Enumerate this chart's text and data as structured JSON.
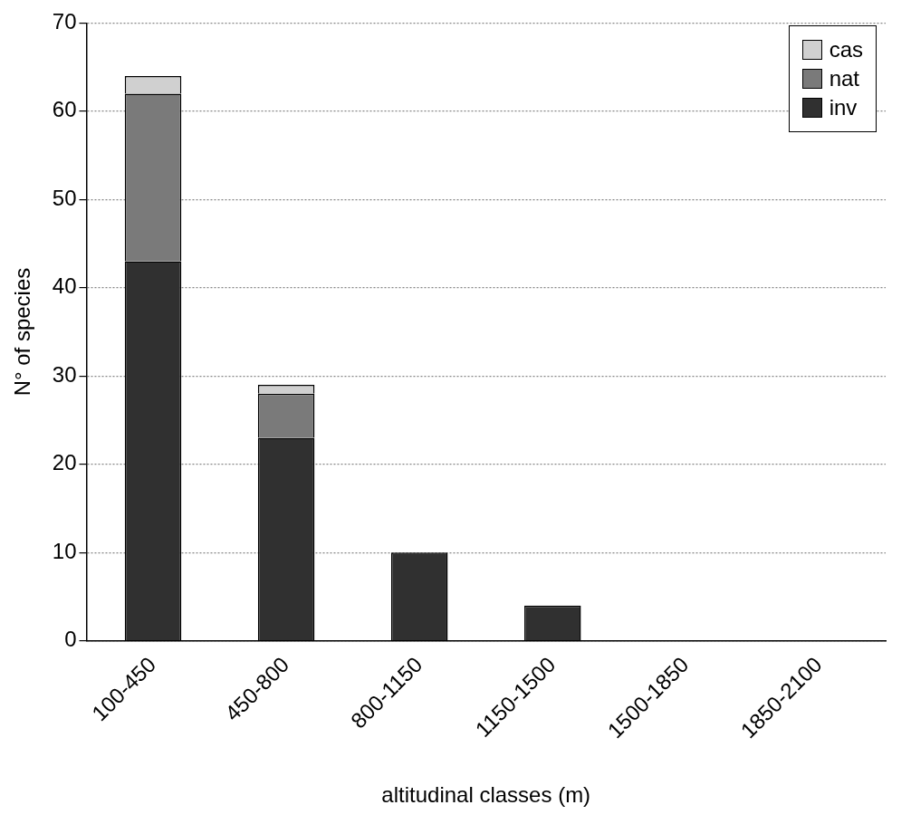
{
  "chart_data": {
    "type": "bar",
    "xlabel": "altitudinal classes (m)",
    "ylabel": "N° of species",
    "categories": [
      "100-450",
      "450-800",
      "800-1150",
      "1150-1500",
      "1500-1850",
      "1850-2100"
    ],
    "stacked": true,
    "series": [
      {
        "name": "inv",
        "color": "#303030",
        "values": [
          43,
          23,
          10,
          4,
          0,
          0
        ]
      },
      {
        "name": "nat",
        "color": "#7a7a7a",
        "values": [
          19,
          5,
          0,
          0,
          0,
          0
        ]
      },
      {
        "name": "cas",
        "color": "#d0d0d0",
        "values": [
          2,
          1,
          0,
          0,
          0,
          0
        ]
      }
    ],
    "ylim": [
      0,
      70
    ],
    "yticks": [
      0,
      10,
      20,
      30,
      40,
      50,
      60,
      70
    ],
    "grid": "y",
    "legend": "top right"
  }
}
